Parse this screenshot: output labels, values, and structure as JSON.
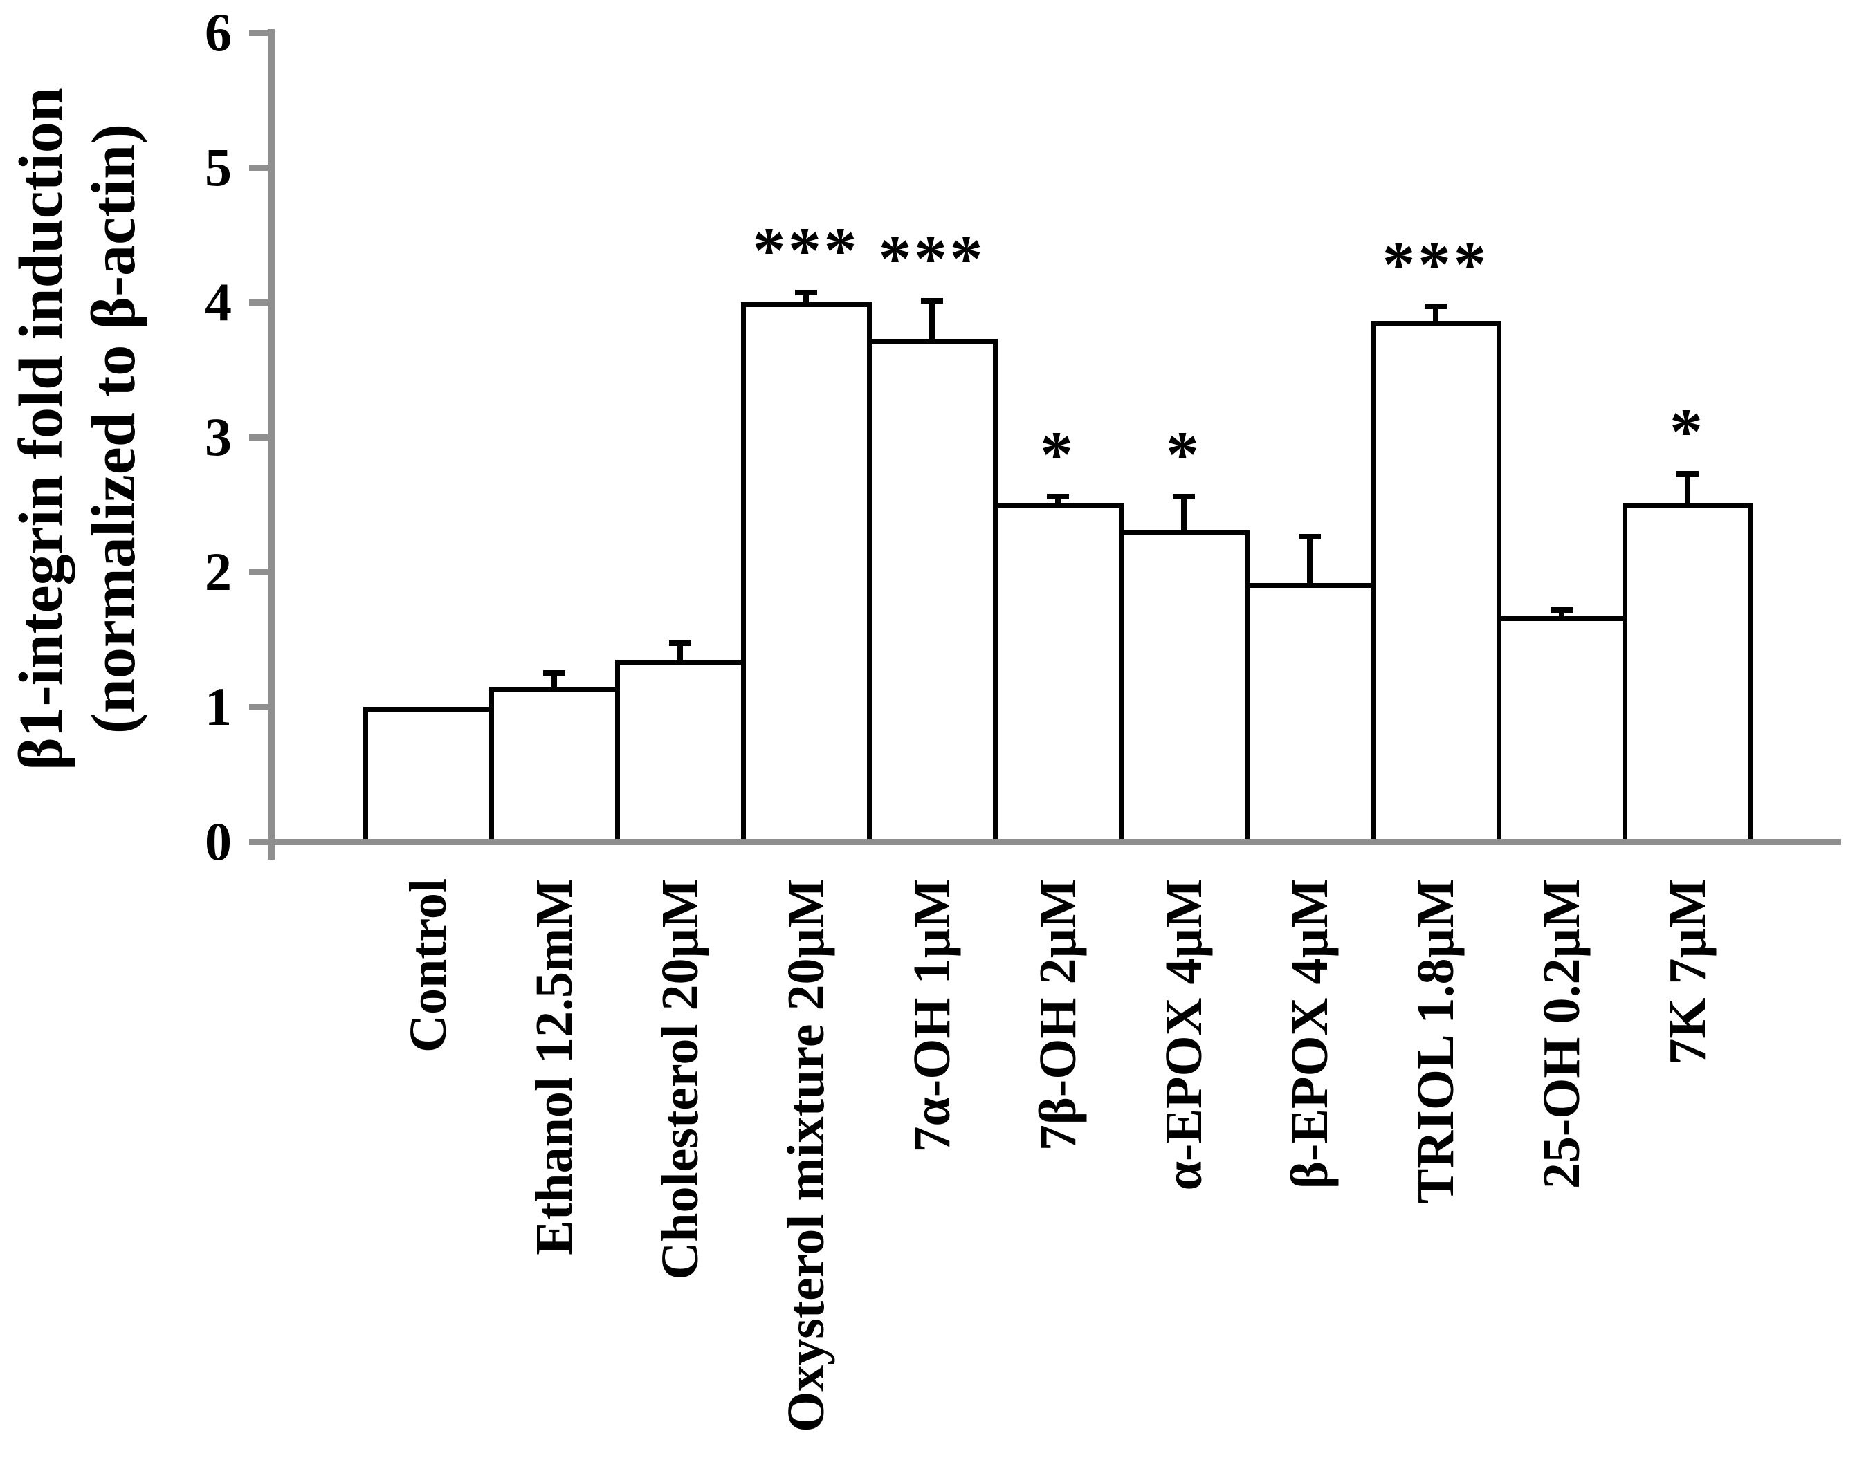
{
  "colors": {
    "axis": "#8f8f8f",
    "bar_fill": "#ffffff",
    "bar_border": "#000000",
    "text": "#000000"
  },
  "chart_data": {
    "type": "bar",
    "title": "",
    "ylabel_lines": [
      "β1-integrin fold induction",
      "(normalized to β-actin)"
    ],
    "xlabel": "",
    "ylim": [
      0,
      6
    ],
    "yticks": [
      0,
      1,
      2,
      3,
      4,
      5,
      6
    ],
    "grid": false,
    "legend_position": "none",
    "categories": [
      "Control",
      "Ethanol 12.5mM",
      "Cholesterol 20µM",
      "Oxysterol mixture 20µM",
      "7α-OH 1µM",
      "7β-OH 2µM",
      "α-EPOX 4µM",
      "β-EPOX 4µM",
      "TRIOL 1.8µM",
      "25-OH 0.2µM",
      "7K 7µM"
    ],
    "values": [
      1.0,
      1.15,
      1.35,
      4.0,
      3.73,
      2.51,
      2.31,
      1.92,
      3.86,
      1.67,
      2.51
    ],
    "errors_upper": [
      0,
      0.1,
      0.12,
      0.07,
      0.28,
      0.05,
      0.25,
      0.34,
      0.11,
      0.05,
      0.22
    ],
    "significance": [
      "",
      "",
      "",
      "***",
      "***",
      "*",
      "*",
      "",
      "***",
      "",
      "*"
    ]
  }
}
